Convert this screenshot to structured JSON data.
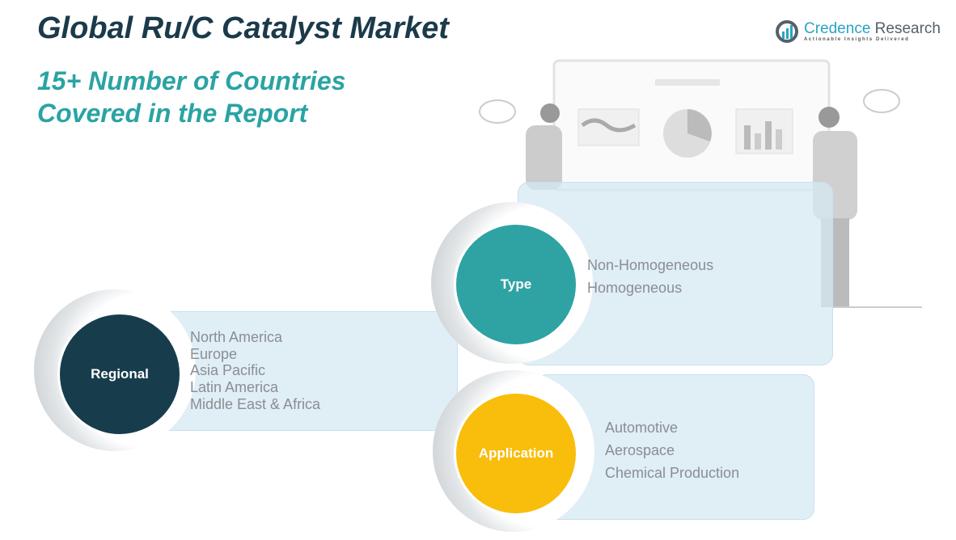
{
  "header": {
    "title": "Global Ru/C Catalyst Market",
    "subtitle_line1": "15+ Number of Countries",
    "subtitle_line2": "Covered in the Report"
  },
  "logo": {
    "name_part1": "Credence",
    "name_part2": " Research",
    "tagline": "Actionable Insights Delivered"
  },
  "segments": {
    "regional": {
      "label": "Regional",
      "color": "#173d4d",
      "items": [
        "North America",
        "Europe",
        "Asia Pacific",
        "Latin America",
        "Middle East & Africa"
      ]
    },
    "type": {
      "label": "Type",
      "color": "#2fa3a3",
      "items": [
        "Non-Homogeneous",
        "Homogeneous"
      ]
    },
    "application": {
      "label": "Application",
      "color": "#f9bd0b",
      "items": [
        "Automotive",
        "Aerospace",
        "Chemical Production"
      ]
    }
  }
}
